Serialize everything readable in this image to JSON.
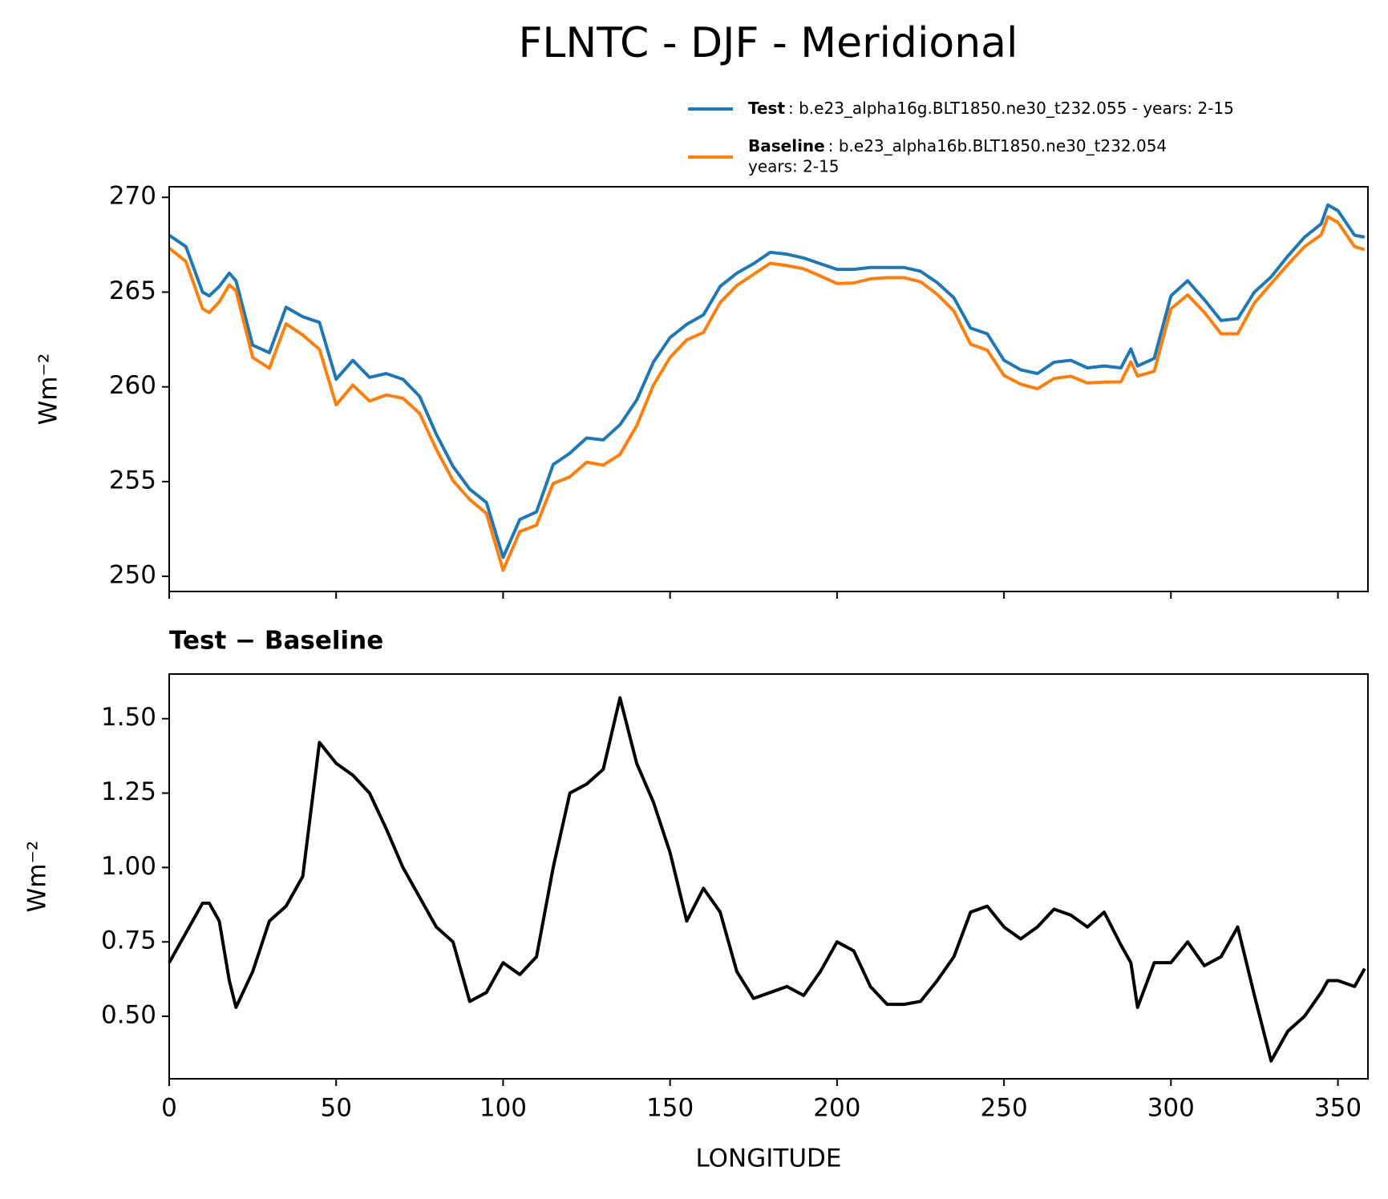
{
  "title": "FLNTC - DJF - Meridional",
  "chart_data": [
    {
      "type": "line",
      "ylabel": "Wm⁻²",
      "x": [
        0,
        5,
        10,
        12,
        15,
        18,
        20,
        25,
        30,
        35,
        40,
        45,
        50,
        55,
        60,
        65,
        70,
        75,
        80,
        85,
        90,
        95,
        100,
        105,
        110,
        115,
        120,
        125,
        130,
        135,
        140,
        145,
        150,
        155,
        160,
        165,
        170,
        175,
        180,
        185,
        190,
        195,
        200,
        205,
        210,
        215,
        220,
        225,
        230,
        235,
        240,
        245,
        250,
        255,
        260,
        265,
        270,
        275,
        280,
        285,
        288,
        290,
        295,
        300,
        305,
        310,
        315,
        320,
        325,
        330,
        335,
        340,
        345,
        347,
        350,
        355,
        358
      ],
      "series": [
        {
          "name": "Test",
          "description": [
            ": b.e23_alpha16g.BLT1850.ne30_t232.055 - years: 2-15"
          ],
          "color": "#1f77b4",
          "values": [
            268.0,
            267.4,
            265.0,
            264.8,
            265.3,
            266.0,
            265.6,
            262.2,
            261.8,
            264.2,
            263.7,
            263.4,
            260.4,
            261.4,
            260.5,
            260.7,
            260.4,
            259.5,
            257.5,
            255.8,
            254.6,
            253.9,
            251.0,
            253.0,
            253.4,
            255.9,
            256.5,
            257.3,
            257.2,
            258.0,
            259.3,
            261.3,
            262.6,
            263.3,
            263.8,
            265.3,
            266.0,
            266.5,
            267.1,
            267.0,
            266.8,
            266.5,
            266.2,
            266.2,
            266.3,
            266.3,
            266.3,
            266.1,
            265.5,
            264.7,
            263.1,
            262.8,
            261.4,
            260.9,
            260.7,
            261.3,
            261.4,
            261.0,
            261.1,
            261.0,
            262.0,
            261.1,
            261.5,
            264.8,
            265.6,
            264.6,
            263.5,
            263.6,
            265.0,
            265.8,
            266.9,
            267.9,
            268.6,
            269.6,
            269.3,
            268.0,
            267.9
          ]
        },
        {
          "name": "Baseline",
          "description": [
            ": b.e23_alpha16b.BLT1850.ne30_t232.054",
            "years: 2-15"
          ],
          "color": "#ff7f0e",
          "values": [
            267.32,
            266.62,
            264.12,
            263.92,
            264.48,
            265.38,
            265.07,
            261.55,
            260.98,
            263.33,
            262.73,
            261.98,
            259.05,
            260.09,
            259.25,
            259.57,
            259.4,
            258.6,
            256.7,
            255.05,
            254.05,
            253.32,
            250.32,
            252.36,
            252.7,
            254.9,
            255.25,
            256.02,
            255.87,
            256.43,
            257.95,
            260.08,
            261.55,
            262.48,
            262.87,
            264.45,
            265.35,
            265.94,
            266.52,
            266.4,
            266.23,
            265.85,
            265.45,
            265.48,
            265.7,
            265.76,
            265.76,
            265.55,
            264.88,
            264.0,
            262.25,
            261.93,
            260.6,
            260.14,
            259.9,
            260.44,
            260.56,
            260.2,
            260.25,
            260.26,
            261.32,
            260.57,
            260.82,
            264.12,
            264.85,
            263.93,
            262.8,
            262.8,
            264.43,
            265.45,
            266.45,
            267.4,
            268.02,
            268.98,
            268.68,
            267.4,
            267.24
          ]
        }
      ],
      "xlim": [
        0,
        359
      ],
      "ylim": [
        249.2,
        270.56
      ],
      "yticks": [
        250,
        255,
        260,
        265,
        270
      ]
    },
    {
      "type": "line",
      "title": "Test − Baseline",
      "ylabel": "Wm⁻²",
      "xlabel": "LONGITUDE",
      "x": [
        0,
        5,
        10,
        12,
        15,
        18,
        20,
        25,
        30,
        35,
        40,
        45,
        50,
        55,
        60,
        65,
        70,
        75,
        80,
        85,
        90,
        95,
        100,
        105,
        110,
        115,
        120,
        125,
        130,
        135,
        140,
        145,
        150,
        155,
        160,
        165,
        170,
        175,
        180,
        185,
        190,
        195,
        200,
        205,
        210,
        215,
        220,
        225,
        230,
        235,
        240,
        245,
        250,
        255,
        260,
        265,
        270,
        275,
        280,
        285,
        288,
        290,
        295,
        300,
        305,
        310,
        315,
        320,
        325,
        330,
        335,
        340,
        345,
        347,
        350,
        355,
        358
      ],
      "series": [
        {
          "color": "#000000",
          "values": [
            0.68,
            0.78,
            0.88,
            0.88,
            0.82,
            0.62,
            0.53,
            0.65,
            0.82,
            0.87,
            0.97,
            1.42,
            1.35,
            1.31,
            1.25,
            1.13,
            1.0,
            0.9,
            0.8,
            0.75,
            0.55,
            0.58,
            0.68,
            0.64,
            0.7,
            1.0,
            1.25,
            1.28,
            1.33,
            1.57,
            1.35,
            1.22,
            1.05,
            0.82,
            0.93,
            0.85,
            0.65,
            0.56,
            0.58,
            0.6,
            0.57,
            0.65,
            0.75,
            0.72,
            0.6,
            0.54,
            0.54,
            0.55,
            0.62,
            0.7,
            0.85,
            0.87,
            0.8,
            0.76,
            0.8,
            0.86,
            0.84,
            0.8,
            0.85,
            0.74,
            0.68,
            0.53,
            0.68,
            0.68,
            0.75,
            0.67,
            0.7,
            0.8,
            0.57,
            0.35,
            0.45,
            0.5,
            0.58,
            0.62,
            0.62,
            0.6,
            0.66
          ]
        }
      ],
      "xlim": [
        0,
        359
      ],
      "ylim": [
        0.29,
        1.65
      ],
      "xticks": [
        0,
        50,
        100,
        150,
        200,
        250,
        300,
        350
      ],
      "yticks": [
        {
          "value": 0.5,
          "label": "0.50"
        },
        {
          "value": 0.75,
          "label": "0.75"
        },
        {
          "value": 1.0,
          "label": "1.00"
        },
        {
          "value": 1.25,
          "label": "1.25"
        },
        {
          "value": 1.5,
          "label": "1.50"
        }
      ]
    }
  ]
}
